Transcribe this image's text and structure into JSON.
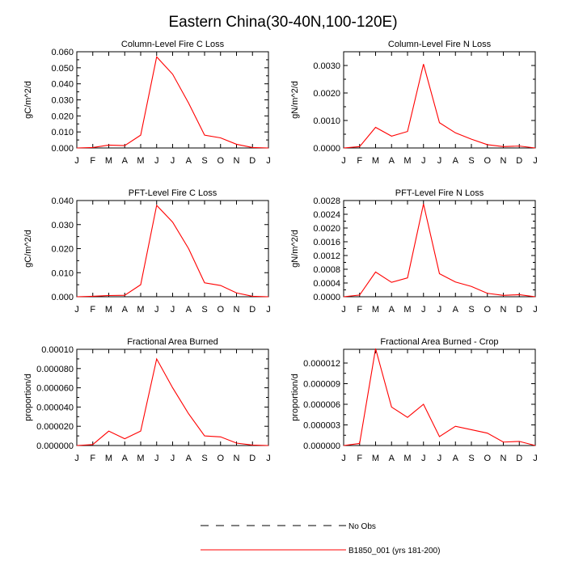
{
  "figure": {
    "title": "Eastern China(30-40N,100-120E)"
  },
  "legend": {
    "entries": [
      {
        "label": "No Obs",
        "color": "#000000",
        "style": "dashed"
      },
      {
        "label": "B1850_001 (yrs 181-200)",
        "color": "#ff0000",
        "style": "solid"
      }
    ]
  },
  "chart_data": [
    {
      "type": "line",
      "title": "Column-Level Fire C Loss",
      "ylabel": "gC/m^2/d",
      "categories": [
        "J",
        "F",
        "M",
        "A",
        "M",
        "J",
        "J",
        "A",
        "S",
        "O",
        "N",
        "D",
        "J"
      ],
      "ylim": [
        0,
        0.06
      ],
      "yticks": [
        "0.000",
        "0.010",
        "0.020",
        "0.030",
        "0.040",
        "0.050",
        "0.060"
      ],
      "series": [
        {
          "name": "B1850_001 (yrs 181-200)",
          "color": "#ff0000",
          "values": [
            0.0,
            0.0003,
            0.0018,
            0.0015,
            0.008,
            0.0568,
            0.046,
            0.028,
            0.008,
            0.0063,
            0.0023,
            0.0003,
            0.0
          ]
        }
      ]
    },
    {
      "type": "line",
      "title": "Column-Level Fire N Loss",
      "ylabel": "gN/m^2/d",
      "categories": [
        "J",
        "F",
        "M",
        "A",
        "M",
        "J",
        "J",
        "A",
        "S",
        "O",
        "N",
        "D",
        "J"
      ],
      "ylim": [
        0,
        0.0035
      ],
      "yticks": [
        "0.0000",
        "0.0010",
        "0.0020",
        "0.0030"
      ],
      "series": [
        {
          "name": "B1850_001 (yrs 181-200)",
          "color": "#ff0000",
          "values": [
            0.0,
            5e-05,
            0.00075,
            0.00043,
            0.0006,
            0.00305,
            0.00092,
            0.00055,
            0.00032,
            0.00012,
            5e-05,
            7e-05,
            0.0
          ]
        }
      ]
    },
    {
      "type": "line",
      "title": "PFT-Level Fire C Loss",
      "ylabel": "gC/m^2/d",
      "categories": [
        "J",
        "F",
        "M",
        "A",
        "M",
        "J",
        "J",
        "A",
        "S",
        "O",
        "N",
        "D",
        "J"
      ],
      "ylim": [
        0,
        0.04
      ],
      "yticks": [
        "0.000",
        "0.010",
        "0.020",
        "0.030",
        "0.040"
      ],
      "series": [
        {
          "name": "B1850_001 (yrs 181-200)",
          "color": "#ff0000",
          "values": [
            0.0,
            0.0002,
            0.0005,
            0.0006,
            0.005,
            0.038,
            0.031,
            0.02,
            0.0058,
            0.0047,
            0.0016,
            0.0002,
            0.0
          ]
        }
      ]
    },
    {
      "type": "line",
      "title": "PFT-Level Fire N Loss",
      "ylabel": "gN/m^2/d",
      "categories": [
        "J",
        "F",
        "M",
        "A",
        "M",
        "J",
        "J",
        "A",
        "S",
        "O",
        "N",
        "D",
        "J"
      ],
      "ylim": [
        0,
        0.0028
      ],
      "yticks": [
        "0.0000",
        "0.0004",
        "0.0008",
        "0.0012",
        "0.0016",
        "0.0020",
        "0.0024",
        "0.0028"
      ],
      "series": [
        {
          "name": "B1850_001 (yrs 181-200)",
          "color": "#ff0000",
          "values": [
            0.0,
            5e-05,
            0.00072,
            0.00042,
            0.00055,
            0.0027,
            0.00067,
            0.00043,
            0.0003,
            0.0001,
            4e-05,
            6e-05,
            0.0
          ]
        }
      ]
    },
    {
      "type": "line",
      "title": "Fractional Area Burned",
      "ylabel": "proportion/d",
      "categories": [
        "J",
        "F",
        "M",
        "A",
        "M",
        "J",
        "J",
        "A",
        "S",
        "O",
        "N",
        "D",
        "J"
      ],
      "ylim": [
        0,
        0.0001
      ],
      "yticks": [
        "0.000000",
        "0.000020",
        "0.000040",
        "0.000060",
        "0.000080",
        "0.00010"
      ],
      "series": [
        {
          "name": "B1850_001 (yrs 181-200)",
          "color": "#ff0000",
          "values": [
            0.0,
            1e-06,
            1.5e-05,
            7e-06,
            1.5e-05,
            9e-05,
            6e-05,
            3.3e-05,
            1e-05,
            9e-06,
            2.5e-06,
            5e-07,
            0.0
          ]
        }
      ]
    },
    {
      "type": "line",
      "title": "Fractional Area Burned - Crop",
      "ylabel": "proportion/d",
      "categories": [
        "J",
        "F",
        "M",
        "A",
        "M",
        "J",
        "J",
        "A",
        "S",
        "O",
        "N",
        "D",
        "J"
      ],
      "ylim": [
        0,
        1.4e-05
      ],
      "yticks": [
        "0.000000",
        "0.000003",
        "0.000006",
        "0.000009",
        "0.000012"
      ],
      "series": [
        {
          "name": "B1850_001 (yrs 181-200)",
          "color": "#ff0000",
          "values": [
            0.0,
            3e-07,
            1.41e-05,
            5.6e-06,
            4.1e-06,
            6e-06,
            1.3e-06,
            2.8e-06,
            2.3e-06,
            1.8e-06,
            5e-07,
            6e-07,
            0.0
          ]
        }
      ]
    }
  ]
}
